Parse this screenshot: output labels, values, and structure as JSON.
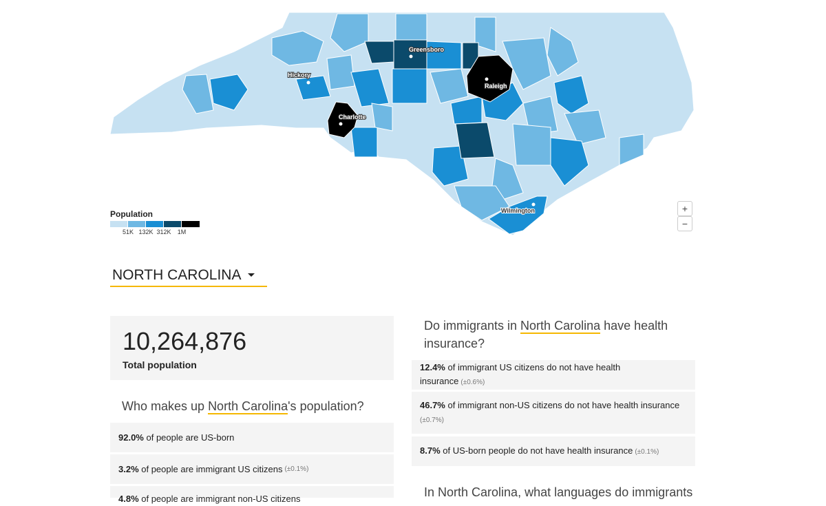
{
  "map": {
    "cities": [
      "Greensboro",
      "Hickory",
      "Raleigh",
      "Charlotte",
      "Wilmington"
    ],
    "legend": {
      "title": "Population",
      "labels": [
        "51K",
        "132K",
        "312K",
        "1M"
      ]
    },
    "zoom": [
      "+",
      "−"
    ]
  },
  "selector": "NORTH CAROLINA",
  "total": {
    "value": "10,264,876",
    "label": "Total population"
  },
  "population": {
    "question": [
      "Who makes up ",
      "North Carolina",
      "'s population?"
    ],
    "rows": [
      [
        "92.0%",
        " of people are US-born"
      ],
      [
        "3.2%",
        " of people are immigrant US citizens",
        "(±0.1%)"
      ],
      [
        "4.8%",
        " of people are immigrant non-US citizens"
      ]
    ]
  },
  "insurance": {
    "question": [
      "Do immigrants in ",
      "North Carolina",
      " have health insurance?"
    ],
    "rows": [
      [
        "12.4%",
        " of immigrant US citizens do not have health insurance",
        "(±0.6%)"
      ],
      [
        "46.7%",
        " of immigrant non-US citizens do not have health insurance",
        "(±0.7%)"
      ],
      [
        "8.7%",
        " of US-born people do not have health insurance",
        "(±0.1%)"
      ]
    ]
  },
  "languages": {
    "question": [
      "In ",
      "North Carolina",
      ", what languages do immigrants"
    ]
  }
}
